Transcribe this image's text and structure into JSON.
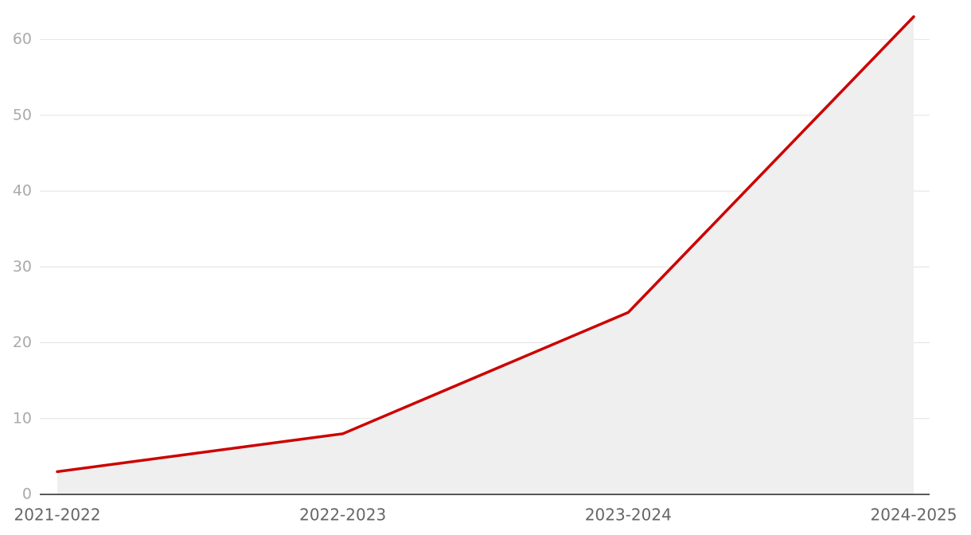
{
  "chart_data": {
    "type": "line",
    "categories": [
      "2021-2022",
      "2022-2023",
      "2023-2024",
      "2024-2025"
    ],
    "series": [
      {
        "color": "#cc0000",
        "values": [
          3,
          8,
          24,
          63
        ]
      }
    ],
    "area": true,
    "area_color": "#efefef",
    "ylim": [
      0,
      63
    ],
    "yticks": [
      0,
      10,
      20,
      30,
      40,
      50,
      60
    ],
    "grid": true
  }
}
